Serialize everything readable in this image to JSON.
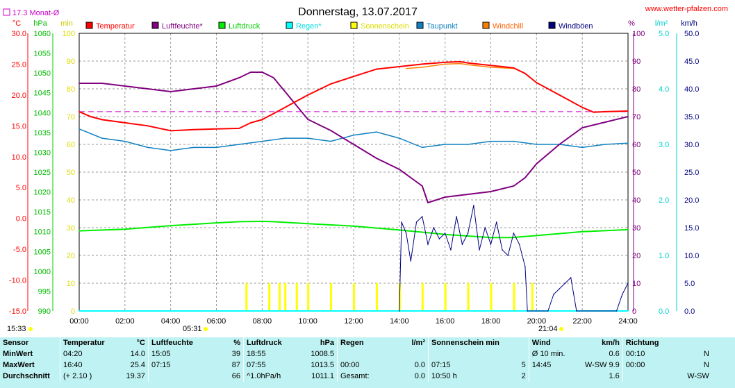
{
  "header": {
    "title": "Donnerstag, 13.07.2017",
    "site": "www.wetter-pfalzen.com",
    "month_avg_label": "17.3 Monat-Ø",
    "month_avg_color": "#cc00cc"
  },
  "left_axes": {
    "temp_unit": "°C",
    "pressure_unit": "hPa",
    "sun_unit": "min",
    "temp_ticks": [
      "30.0",
      "25.0",
      "20.0",
      "15.0",
      "10.0",
      "5.0",
      "0.0",
      "-5.0",
      "-10.0",
      "-15.0"
    ],
    "pressure_ticks": [
      "1060",
      "1055",
      "1050",
      "1045",
      "1040",
      "1035",
      "1030",
      "1025",
      "1020",
      "1015",
      "1010",
      "1005",
      "1000",
      "995",
      "990"
    ],
    "sun_ticks": [
      "100",
      "90",
      "80",
      "70",
      "60",
      "50",
      "40",
      "30",
      "20",
      "10",
      "0"
    ]
  },
  "right_axes": {
    "humidity_unit": "%",
    "rain_unit": "l/m²",
    "wind_unit": "km/h",
    "humidity_ticks": [
      "100",
      "90",
      "80",
      "70",
      "60",
      "50",
      "40",
      "30",
      "20",
      "10",
      "0"
    ],
    "rain_ticks": [
      "5.0",
      "4.0",
      "3.0",
      "2.0",
      "1.0",
      "0.0"
    ],
    "wind_ticks": [
      "50.0",
      "45.0",
      "40.0",
      "35.0",
      "30.0",
      "25.0",
      "20.0",
      "15.0",
      "10.0",
      "5.0",
      "0.0"
    ]
  },
  "x_ticks": [
    "00:00",
    "02:00",
    "04:00",
    "06:00",
    "08:00",
    "10:00",
    "12:00",
    "14:00",
    "16:00",
    "18:00",
    "20:00",
    "22:00",
    "24:00"
  ],
  "sun_events": {
    "day_length": "15:33",
    "sunrise": "05:31",
    "sunset": "21:04"
  },
  "legend": [
    {
      "label": "Temperatur",
      "color": "#ff0000",
      "text_color": "#ff0000"
    },
    {
      "label": "Luftfeuchte*",
      "color": "#800080",
      "text_color": "#800080"
    },
    {
      "label": "Luftdruck",
      "color": "#00ee00",
      "text_color": "#00cc00"
    },
    {
      "label": "Regen*",
      "color": "#00ffff",
      "text_color": "#00dddd"
    },
    {
      "label": "Sonnenschein",
      "color": "#ffff00",
      "text_color": "#dddd00"
    },
    {
      "label": "Taupunkt",
      "color": "#1080c0",
      "text_color": "#1080c0"
    },
    {
      "label": "Windchill",
      "color": "#ff8000",
      "text_color": "#ff6000"
    },
    {
      "label": "Windböen",
      "color": "#000080",
      "text_color": "#000080"
    }
  ],
  "chart_data": {
    "type": "line",
    "x_unit": "hours",
    "xlim": [
      0,
      24
    ],
    "month_avg_temperature": 17.3,
    "series": [
      {
        "name": "Temperatur",
        "unit": "°C",
        "color": "#ff0000",
        "ylim": [
          -15,
          30
        ],
        "x": [
          0,
          0.5,
          1,
          2,
          3,
          4,
          5,
          6,
          7,
          7.5,
          8,
          8.5,
          9,
          9.5,
          10,
          11,
          12,
          13,
          14,
          15,
          16,
          16.67,
          17,
          18,
          18.5,
          19,
          19.5,
          20,
          21,
          22,
          22.5,
          23,
          24
        ],
        "y": [
          17.3,
          16.5,
          16.0,
          15.5,
          15.0,
          14.2,
          14.4,
          14.5,
          14.6,
          15.5,
          16.0,
          17.0,
          18.0,
          19.0,
          20.0,
          21.8,
          23.0,
          24.2,
          24.6,
          25.0,
          25.3,
          25.4,
          25.2,
          24.8,
          24.6,
          24.4,
          23.5,
          22.0,
          20.0,
          18.0,
          17.2,
          17.3,
          17.4
        ]
      },
      {
        "name": "Luftfeuchte*",
        "unit": "%",
        "color": "#800080",
        "ylim": [
          0,
          100
        ],
        "x": [
          0,
          1,
          2,
          3,
          4,
          5,
          6,
          7,
          7.5,
          8,
          8.5,
          9,
          9.5,
          10,
          10.5,
          11,
          12,
          13,
          14,
          14.5,
          15,
          15.25,
          16,
          17,
          18,
          19,
          19.5,
          20,
          21,
          22,
          23,
          24
        ],
        "y": [
          82,
          82,
          81,
          80,
          79,
          80,
          81,
          84,
          86,
          86,
          84,
          79,
          74,
          69,
          67,
          65,
          60,
          55,
          51,
          48,
          45,
          39,
          41,
          42,
          43,
          45,
          48,
          53,
          60,
          66,
          68,
          70
        ]
      },
      {
        "name": "Luftdruck",
        "unit": "hPa",
        "color": "#00ee00",
        "ylim": [
          990,
          1060
        ],
        "x": [
          0,
          2,
          4,
          6,
          7,
          8,
          8.5,
          10,
          12,
          14,
          16,
          18,
          18.92,
          20,
          22,
          24
        ],
        "y": [
          1010.2,
          1010.6,
          1011.5,
          1012.2,
          1012.5,
          1012.6,
          1012.5,
          1012.0,
          1011.4,
          1010.4,
          1009.3,
          1008.5,
          1008.5,
          1009.0,
          1010.0,
          1010.5
        ]
      },
      {
        "name": "Taupunkt",
        "unit": "°C",
        "color": "#1080c0",
        "ylim": [
          -15,
          30
        ],
        "x": [
          0,
          1,
          2,
          3,
          4,
          5,
          6,
          7,
          8,
          9,
          10,
          11,
          12,
          13,
          14,
          15,
          16,
          17,
          18,
          19,
          20,
          21,
          22,
          23,
          24
        ],
        "y": [
          14.5,
          13.0,
          12.5,
          11.5,
          11.0,
          11.5,
          11.5,
          12.0,
          12.5,
          13.0,
          13.0,
          12.5,
          13.5,
          14.0,
          13.0,
          11.5,
          12.0,
          12.0,
          12.5,
          12.5,
          12.0,
          12.0,
          11.5,
          12.0,
          12.2
        ]
      },
      {
        "name": "Windchill",
        "unit": "°C",
        "color": "#ff8000",
        "ylim": [
          -15,
          30
        ],
        "x": [
          14.3,
          15,
          16,
          16.67,
          17,
          18,
          18.5,
          19
        ],
        "y": [
          24.3,
          24.5,
          25.0,
          25.1,
          24.9,
          24.5,
          24.4,
          24.3
        ]
      },
      {
        "name": "Windböen",
        "unit": "km/h",
        "color": "#000080",
        "ylim": [
          0,
          50
        ],
        "x": [
          14.0,
          14.1,
          14.3,
          14.5,
          14.75,
          15,
          15.25,
          15.5,
          15.75,
          16,
          16.25,
          16.5,
          16.75,
          17,
          17.25,
          17.5,
          17.75,
          18,
          18.25,
          18.5,
          18.75,
          19,
          19.25,
          19.5,
          19.6,
          20.5,
          20.75,
          21,
          21.25,
          21.5,
          21.75,
          23.5,
          23.75,
          24
        ],
        "y": [
          0,
          16,
          14,
          9,
          16,
          17,
          12,
          15,
          13,
          14,
          11,
          17,
          12,
          14,
          19,
          11,
          15,
          12,
          16,
          11,
          10,
          14,
          12,
          8,
          0,
          0,
          3,
          4,
          5,
          6,
          0,
          0,
          3,
          5
        ]
      },
      {
        "name": "Sonnenschein",
        "unit": "min",
        "color": "#ffff00",
        "ylim": [
          0,
          100
        ],
        "x": [
          7.3,
          8.3,
          8.75,
          9,
          9.5,
          10,
          11,
          12,
          13,
          14,
          15,
          16,
          17,
          18,
          19,
          19.8
        ],
        "y": [
          5,
          5,
          5,
          5,
          5,
          5,
          5,
          5,
          5,
          5,
          5,
          5,
          5,
          5,
          5,
          5
        ]
      },
      {
        "name": "Regen*",
        "unit": "l/m²",
        "color": "#00ffff",
        "ylim": [
          0,
          5
        ],
        "x": [
          0,
          24
        ],
        "y": [
          0,
          0
        ]
      }
    ]
  },
  "stats": {
    "rows": [
      [
        "Sensor",
        "Temperatur",
        "°C",
        "Luftfeuchte",
        "%",
        "Luftdruck",
        "hPa",
        "Regen",
        "l/m²",
        "Sonnenschein min",
        "",
        "Wind",
        "km/h",
        "Richtung",
        ""
      ],
      [
        "MinWert",
        "04:20",
        "14.0",
        "15:05",
        "39",
        "18:55",
        "1008.5",
        "",
        "",
        "",
        "",
        "Ø 10 min.",
        "0.6",
        "00:10",
        "N"
      ],
      [
        "MaxWert",
        "16:40",
        "25.4",
        "07:15",
        "87",
        "07:55",
        "1013.5",
        "00:00",
        "0.0",
        "07:15",
        "5",
        "14:45",
        "W-SW 9.9",
        "00:00",
        "N"
      ],
      [
        "Durchschnitt",
        "(+ 2.10 )",
        "19.37",
        "",
        "66",
        "^1.0hPa/h",
        "1011.1",
        "Gesamt:",
        "0.0",
        "10:50 h",
        "2",
        "",
        "1.6",
        "",
        "W-SW"
      ]
    ]
  }
}
